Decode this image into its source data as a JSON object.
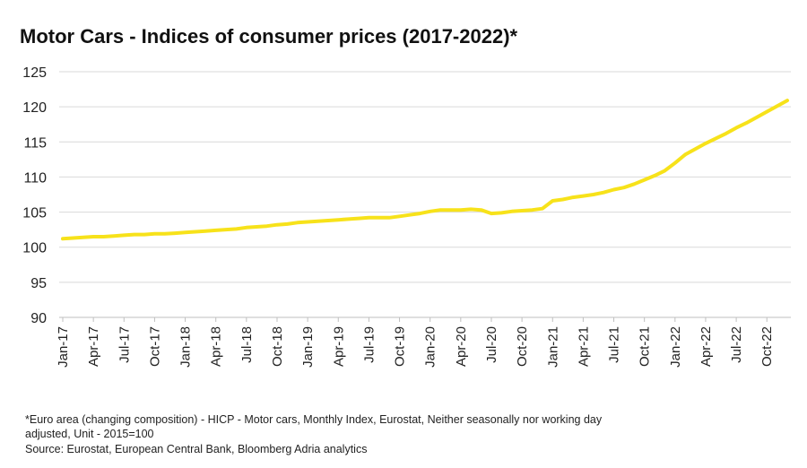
{
  "chart_data": {
    "type": "line",
    "title": "Motor Cars - Indices of consumer prices (2017-2022)*",
    "xlabel": "",
    "ylabel": "",
    "ylim": [
      90,
      125
    ],
    "yticks": [
      90,
      95,
      100,
      105,
      110,
      115,
      120,
      125
    ],
    "grid": "horizontal",
    "legend": "none",
    "line_color": "#f7e21a",
    "x_tick_labels": [
      "Jan-17",
      "Apr-17",
      "Jul-17",
      "Oct-17",
      "Jan-18",
      "Apr-18",
      "Jul-18",
      "Oct-18",
      "Jan-19",
      "Apr-19",
      "Jul-19",
      "Oct-19",
      "Jan-20",
      "Apr-20",
      "Jul-20",
      "Oct-20",
      "Jan-21",
      "Apr-21",
      "Jul-21",
      "Oct-21",
      "Jan-22",
      "Apr-22",
      "Jul-22",
      "Oct-22"
    ],
    "x": [
      "Jan-17",
      "Feb-17",
      "Mar-17",
      "Apr-17",
      "May-17",
      "Jun-17",
      "Jul-17",
      "Aug-17",
      "Sep-17",
      "Oct-17",
      "Nov-17",
      "Dec-17",
      "Jan-18",
      "Feb-18",
      "Mar-18",
      "Apr-18",
      "May-18",
      "Jun-18",
      "Jul-18",
      "Aug-18",
      "Sep-18",
      "Oct-18",
      "Nov-18",
      "Dec-18",
      "Jan-19",
      "Feb-19",
      "Mar-19",
      "Apr-19",
      "May-19",
      "Jun-19",
      "Jul-19",
      "Aug-19",
      "Sep-19",
      "Oct-19",
      "Nov-19",
      "Dec-19",
      "Jan-20",
      "Feb-20",
      "Mar-20",
      "Apr-20",
      "May-20",
      "Jun-20",
      "Jul-20",
      "Aug-20",
      "Sep-20",
      "Oct-20",
      "Nov-20",
      "Dec-20",
      "Jan-21",
      "Feb-21",
      "Mar-21",
      "Apr-21",
      "May-21",
      "Jun-21",
      "Jul-21",
      "Aug-21",
      "Sep-21",
      "Oct-21",
      "Nov-21",
      "Dec-21",
      "Jan-22",
      "Feb-22",
      "Mar-22",
      "Apr-22",
      "May-22",
      "Jun-22",
      "Jul-22",
      "Aug-22",
      "Sep-22",
      "Oct-22",
      "Nov-22",
      "Dec-22"
    ],
    "series": [
      {
        "values": [
          101.2,
          101.3,
          101.4,
          101.5,
          101.5,
          101.6,
          101.7,
          101.8,
          101.8,
          101.9,
          101.9,
          102.0,
          102.1,
          102.2,
          102.3,
          102.4,
          102.5,
          102.6,
          102.8,
          102.9,
          103.0,
          103.2,
          103.3,
          103.5,
          103.6,
          103.7,
          103.8,
          103.9,
          104.0,
          104.1,
          104.2,
          104.2,
          104.2,
          104.4,
          104.6,
          104.8,
          105.1,
          105.3,
          105.3,
          105.3,
          105.4,
          105.3,
          104.8,
          104.9,
          105.1,
          105.2,
          105.3,
          105.5,
          106.6,
          106.8,
          107.1,
          107.3,
          107.5,
          107.8,
          108.2,
          108.5,
          109.0,
          109.6,
          110.2,
          110.9,
          112.0,
          113.2,
          114.0,
          114.8,
          115.5,
          116.2,
          117.0,
          117.7,
          118.5,
          119.3,
          120.1,
          120.9
        ]
      }
    ]
  },
  "footnote": {
    "line1": "*Euro area (changing composition) - HICP - Motor cars, Monthly Index, Eurostat, Neither seasonally nor working day",
    "line2": "adjusted, Unit - 2015=100",
    "line3": "Source: Eurostat, European Central Bank, Bloomberg Adria analytics"
  }
}
